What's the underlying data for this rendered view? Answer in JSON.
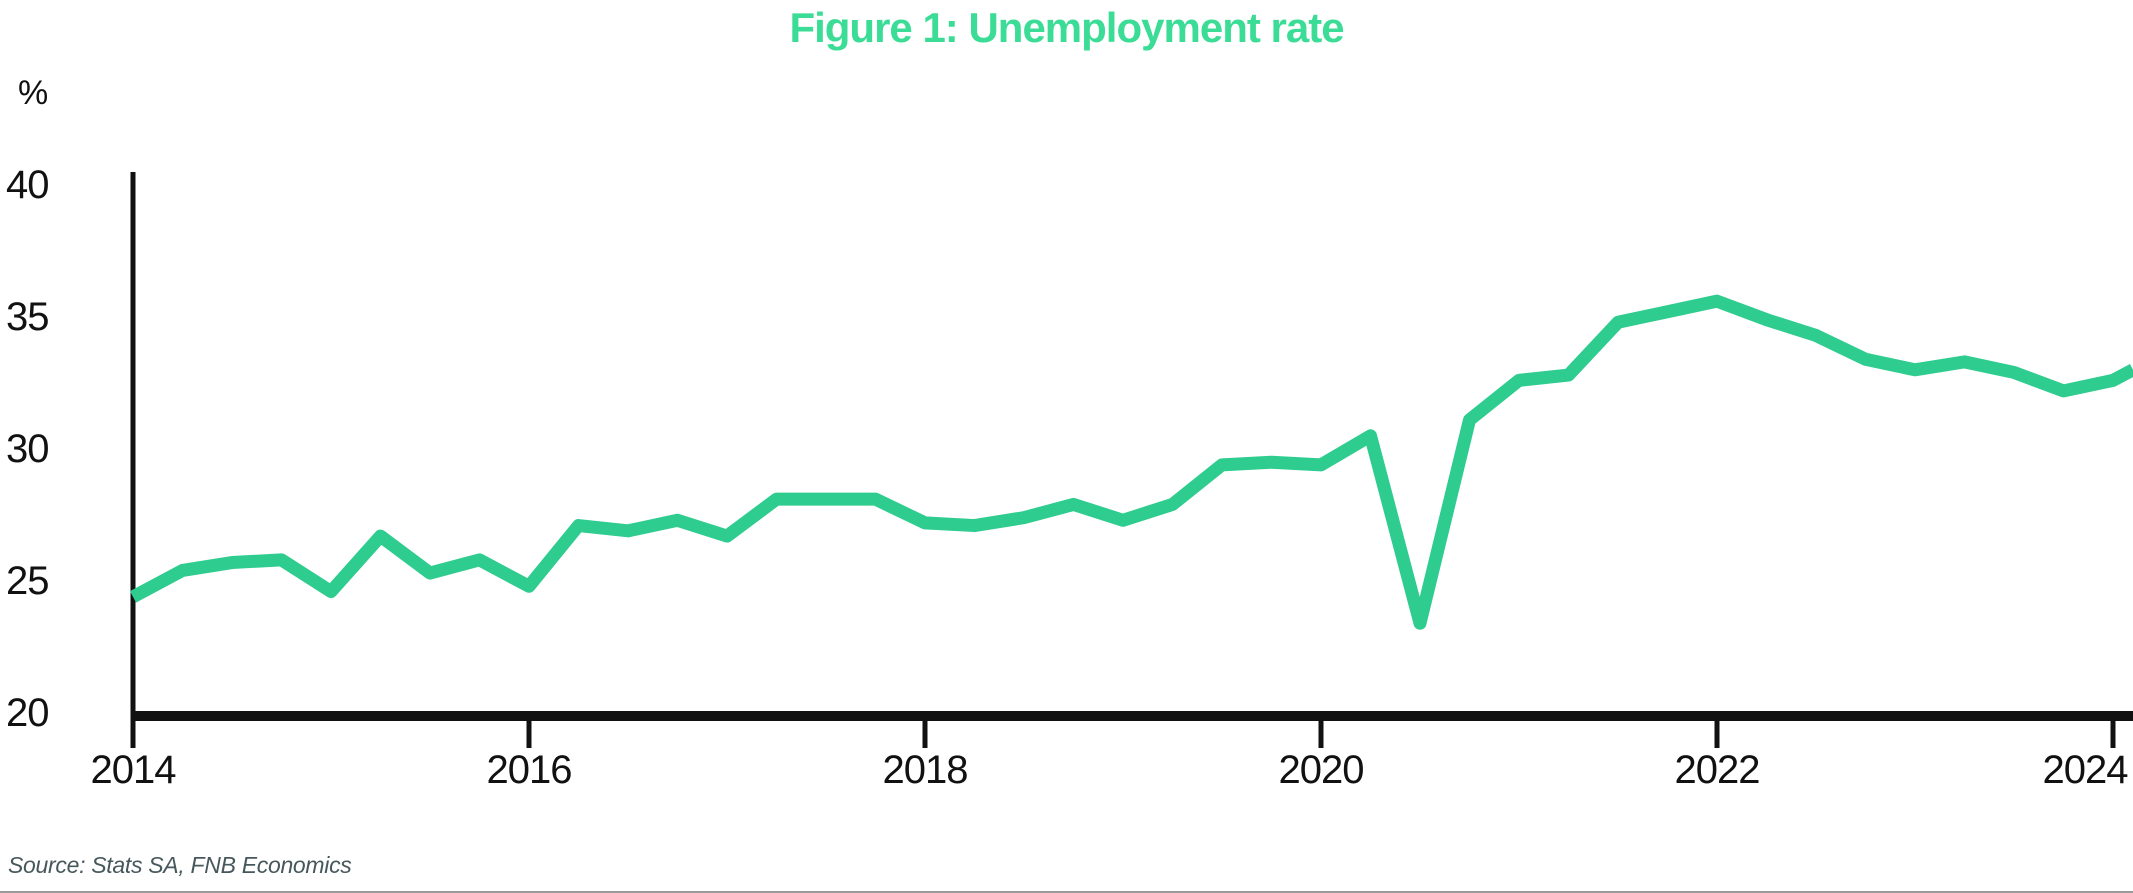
{
  "chart": {
    "title": "Figure 1: Unemployment rate",
    "unit": "%",
    "source": "Source: Stats SA, FNB Economics"
  },
  "chart_data": {
    "type": "line",
    "title": "Figure 1: Unemployment rate",
    "xlabel": "",
    "ylabel": "%",
    "ylim": [
      20,
      40
    ],
    "y_tick_labels": [
      "20",
      "25",
      "30",
      "35",
      "40"
    ],
    "x_tick_labels": [
      "2014",
      "2016",
      "2018",
      "2020",
      "2022",
      "2024"
    ],
    "x_tick_years": [
      2014,
      2016,
      2018,
      2020,
      2022,
      2024
    ],
    "grid": false,
    "legend": false,
    "frequency": "quarterly",
    "source_note": "Source: Stats SA, FNB Economics",
    "colors": {
      "title": "#3bdc96",
      "line": "#2ecc8e",
      "axis": "#111111",
      "text": "#111111",
      "source": "#47585c",
      "divider": "#9a9a9a"
    },
    "series": [
      {
        "name": "Unemployment rate (%)",
        "color": "#2ecc8e",
        "x": [
          "2014Q1",
          "2014Q2",
          "2014Q3",
          "2014Q4",
          "2015Q1",
          "2015Q2",
          "2015Q3",
          "2015Q4",
          "2016Q1",
          "2016Q2",
          "2016Q3",
          "2016Q4",
          "2017Q1",
          "2017Q2",
          "2017Q3",
          "2017Q4",
          "2018Q1",
          "2018Q2",
          "2018Q3",
          "2018Q4",
          "2019Q1",
          "2019Q2",
          "2019Q3",
          "2019Q4",
          "2020Q1",
          "2020Q2",
          "2020Q3",
          "2020Q4",
          "2021Q1",
          "2021Q2",
          "2021Q3",
          "2021Q4",
          "2022Q1",
          "2022Q2",
          "2022Q3",
          "2022Q4",
          "2023Q1",
          "2023Q2",
          "2023Q3",
          "2023Q4",
          "2024Q1",
          "2024Q2"
        ],
        "values": [
          24.4,
          25.4,
          25.7,
          25.8,
          24.6,
          26.7,
          25.3,
          25.8,
          24.8,
          27.1,
          26.9,
          27.3,
          26.7,
          28.1,
          28.1,
          28.1,
          27.2,
          27.1,
          27.4,
          27.9,
          27.3,
          27.9,
          29.4,
          29.5,
          29.4,
          30.5,
          23.4,
          31.1,
          32.6,
          32.8,
          34.8,
          35.2,
          35.6,
          34.9,
          34.3,
          33.4,
          33.0,
          33.3,
          32.9,
          32.2,
          32.6,
          33.0
        ]
      }
    ]
  }
}
